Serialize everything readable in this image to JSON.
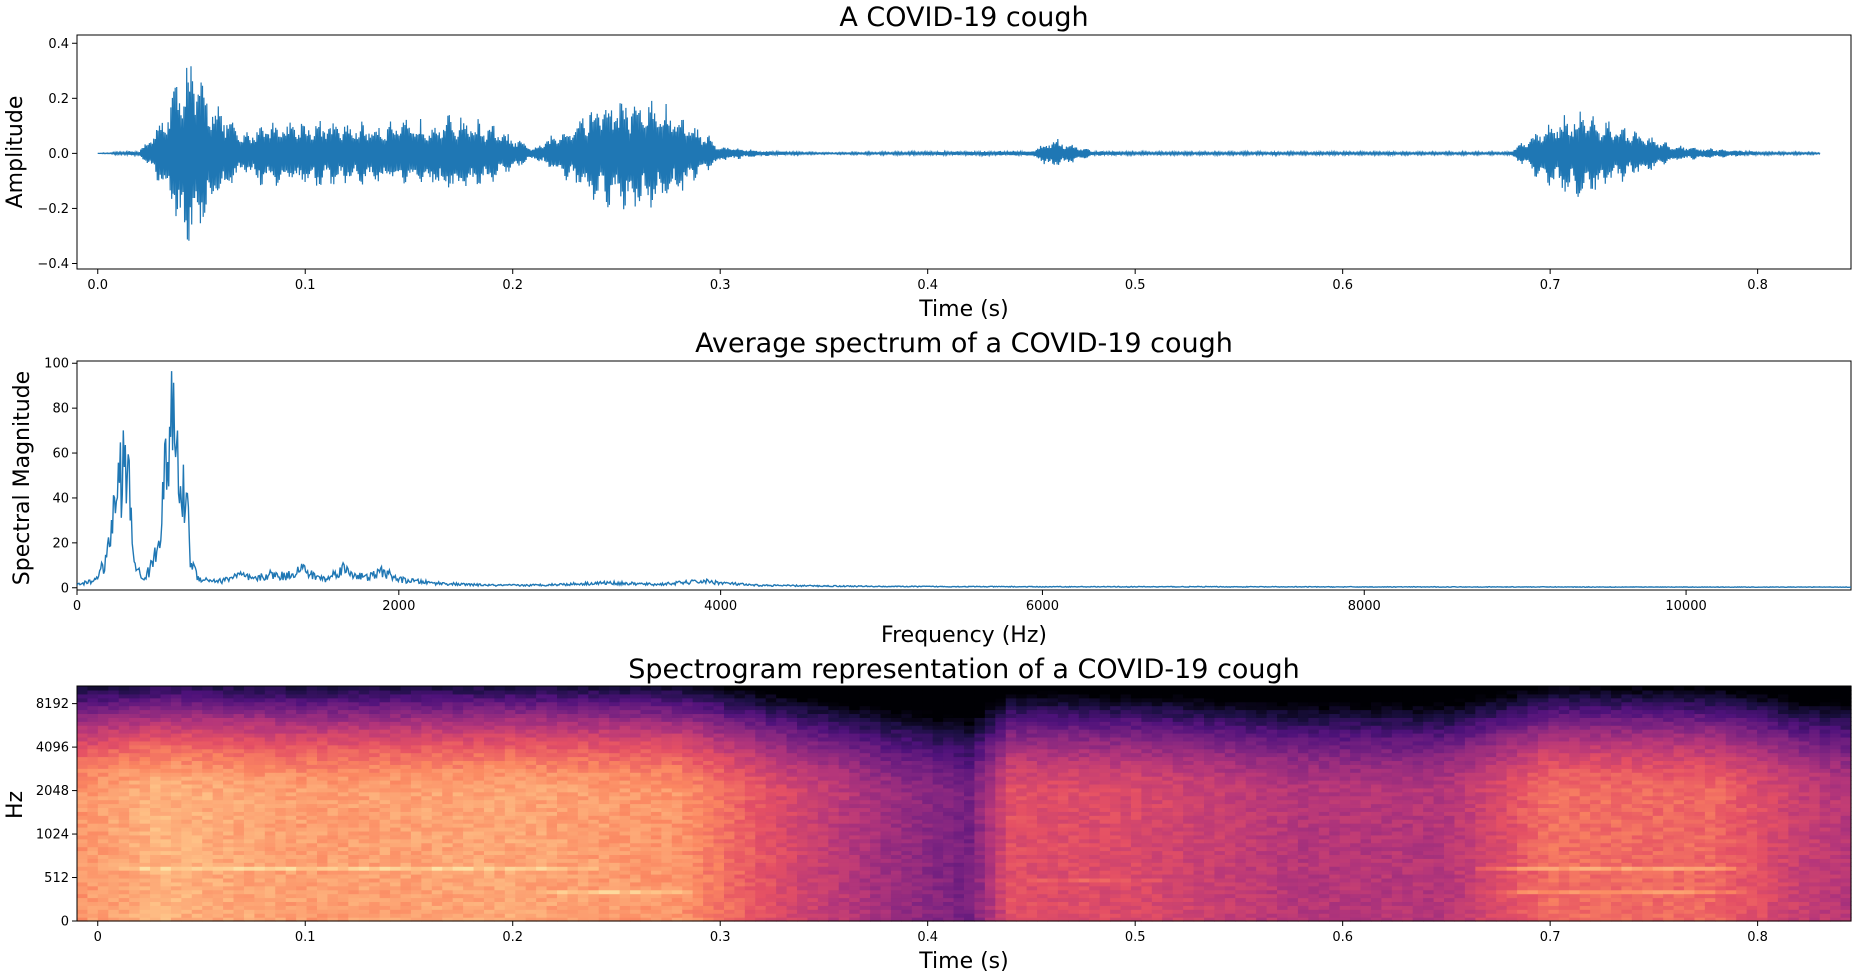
{
  "chart_data": [
    {
      "type": "line",
      "title": "A COVID-19 cough",
      "xlabel": "Time (s)",
      "ylabel": "Amplitude",
      "xlim": [
        -0.01,
        0.845
      ],
      "ylim": [
        -0.42,
        0.43
      ],
      "x_ticks": [
        0.0,
        0.1,
        0.2,
        0.3,
        0.4,
        0.5,
        0.6,
        0.7,
        0.8
      ],
      "x_tick_labels": [
        "0.0",
        "0.1",
        "0.2",
        "0.3",
        "0.4",
        "0.5",
        "0.6",
        "0.7",
        "0.8"
      ],
      "y_ticks": [
        -0.4,
        -0.2,
        0.0,
        0.2,
        0.4
      ],
      "y_tick_labels": [
        "−0.4",
        "−0.2",
        "0.0",
        "0.2",
        "0.4"
      ],
      "color": "#1f77b4",
      "series": [
        {
          "x": [
            0.0,
            0.02,
            0.03,
            0.04,
            0.045,
            0.05,
            0.06,
            0.07,
            0.08,
            0.1,
            0.12,
            0.14,
            0.16,
            0.175,
            0.19,
            0.21,
            0.225,
            0.24,
            0.255,
            0.27,
            0.285,
            0.3,
            0.32,
            0.35,
            0.45,
            0.46,
            0.48,
            0.5,
            0.6,
            0.68,
            0.7,
            0.715,
            0.73,
            0.76,
            0.8,
            0.83
          ],
          "envelope": [
            0.0,
            0.01,
            0.12,
            0.33,
            0.38,
            0.28,
            0.18,
            0.07,
            0.13,
            0.13,
            0.12,
            0.12,
            0.13,
            0.15,
            0.11,
            0.02,
            0.1,
            0.2,
            0.22,
            0.2,
            0.13,
            0.03,
            0.01,
            0.003,
            0.01,
            0.06,
            0.01,
            0.006,
            0.006,
            0.005,
            0.13,
            0.17,
            0.12,
            0.03,
            0.006,
            0.004
          ]
        }
      ]
    },
    {
      "type": "line",
      "title": "Average spectrum of a COVID-19 cough",
      "xlabel": "Frequency (Hz)",
      "ylabel": "Spectral Magnitude",
      "xlim": [
        0,
        11025
      ],
      "ylim": [
        -1,
        101
      ],
      "x_ticks": [
        0,
        2000,
        4000,
        6000,
        8000,
        10000
      ],
      "x_tick_labels": [
        "0",
        "2000",
        "4000",
        "6000",
        "8000",
        "10000"
      ],
      "y_ticks": [
        0,
        20,
        40,
        60,
        80,
        100
      ],
      "y_tick_labels": [
        "0",
        "20",
        "40",
        "60",
        "80",
        "100"
      ],
      "color": "#1f77b4",
      "series": [
        {
          "x": [
            0,
            100,
            180,
            250,
            300,
            320,
            350,
            400,
            450,
            500,
            550,
            580,
            610,
            650,
            680,
            700,
            750,
            800,
            900,
            1000,
            1100,
            1200,
            1300,
            1400,
            1450,
            1550,
            1650,
            1700,
            1800,
            1900,
            2000,
            2200,
            2400,
            2600,
            2800,
            3000,
            3300,
            3600,
            3900,
            4000,
            4200,
            4500,
            5000,
            6000,
            7000,
            8000,
            9000,
            10000,
            11025
          ],
          "values": [
            2,
            4,
            15,
            60,
            78,
            65,
            20,
            5,
            10,
            25,
            70,
            99,
            92,
            50,
            65,
            20,
            6,
            5,
            4,
            8,
            5,
            8,
            7,
            12,
            8,
            5,
            12,
            9,
            6,
            10,
            5,
            3,
            2,
            1.5,
            1.5,
            2,
            3,
            2,
            4,
            3,
            1.5,
            1.2,
            0.8,
            0.6,
            0.6,
            0.5,
            0.5,
            0.4,
            0.4
          ]
        }
      ]
    },
    {
      "type": "heatmap",
      "title": "Spectrogram representation of a COVID-19 cough",
      "xlabel": "Time (s)",
      "ylabel": "Hz",
      "xlim": [
        -0.01,
        0.845
      ],
      "x_ticks": [
        0.0,
        0.1,
        0.2,
        0.3,
        0.4,
        0.5,
        0.6,
        0.7,
        0.8
      ],
      "x_tick_labels": [
        "0",
        "0.1",
        "0.2",
        "0.3",
        "0.4",
        "0.5",
        "0.6",
        "0.7",
        "0.8"
      ],
      "y_scale": "symlog",
      "y_ticks": [
        0,
        512,
        1024,
        2048,
        4096,
        8192
      ],
      "y_tick_labels": [
        "0",
        "512",
        "1024",
        "2048",
        "4096",
        "8192"
      ],
      "colormap": "magma",
      "bright_bands": [
        {
          "t_start": -0.01,
          "t_end": 0.25,
          "freq": 600,
          "level": 0.95
        },
        {
          "t_start": 0.2,
          "t_end": 0.3,
          "freq": 350,
          "level": 0.92
        },
        {
          "t_start": 0.0,
          "t_end": 0.3,
          "freq": 2048,
          "level": 0.7
        },
        {
          "t_start": 0.2,
          "t_end": 0.3,
          "freq": 3800,
          "level": 0.7
        },
        {
          "t_start": 0.43,
          "t_end": 0.52,
          "freq": 500,
          "level": 0.75
        },
        {
          "t_start": 0.66,
          "t_end": 0.8,
          "freq": 600,
          "level": 0.85
        },
        {
          "t_start": 0.66,
          "t_end": 0.8,
          "freq": 350,
          "level": 0.8
        },
        {
          "t_start": 0.68,
          "t_end": 0.8,
          "freq": 1500,
          "level": 0.7
        },
        {
          "t_start": 0.7,
          "t_end": 0.8,
          "freq": 3000,
          "level": 0.55
        }
      ]
    }
  ]
}
